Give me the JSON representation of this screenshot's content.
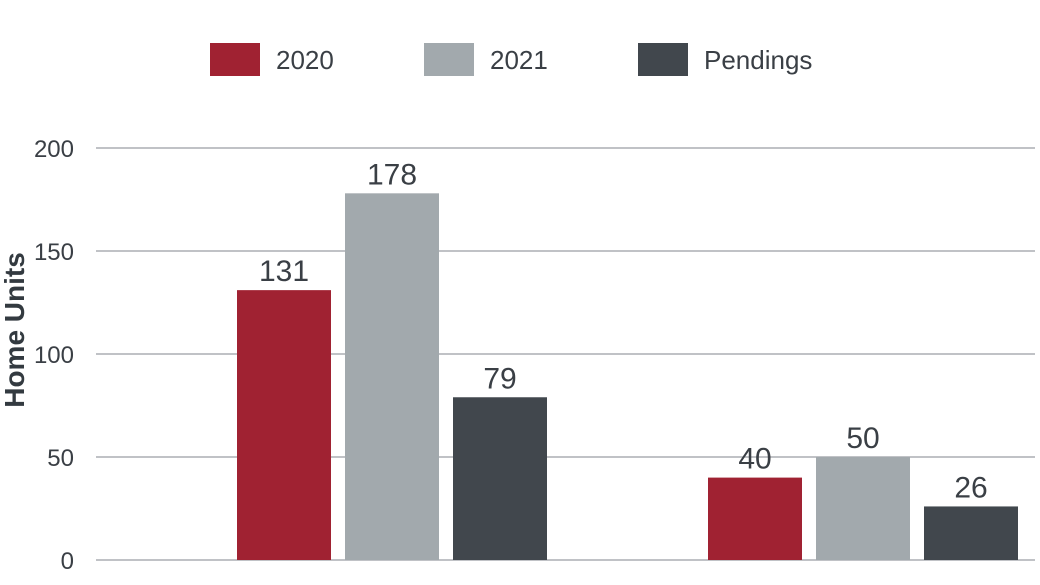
{
  "chart_data": {
    "type": "bar",
    "title": "",
    "xlabel": "",
    "ylabel": "Home Units",
    "ylim": [
      0,
      200
    ],
    "yticks": [
      0,
      50,
      100,
      150,
      200
    ],
    "grid": true,
    "legend_position": "top",
    "categories": [
      "",
      ""
    ],
    "series": [
      {
        "name": "2020",
        "color": "#a02232",
        "values": [
          131,
          40
        ]
      },
      {
        "name": "2021",
        "color": "#a2a9ad",
        "values": [
          178,
          50
        ]
      },
      {
        "name": "Pendings",
        "color": "#41474d",
        "values": [
          79,
          26
        ]
      }
    ]
  }
}
